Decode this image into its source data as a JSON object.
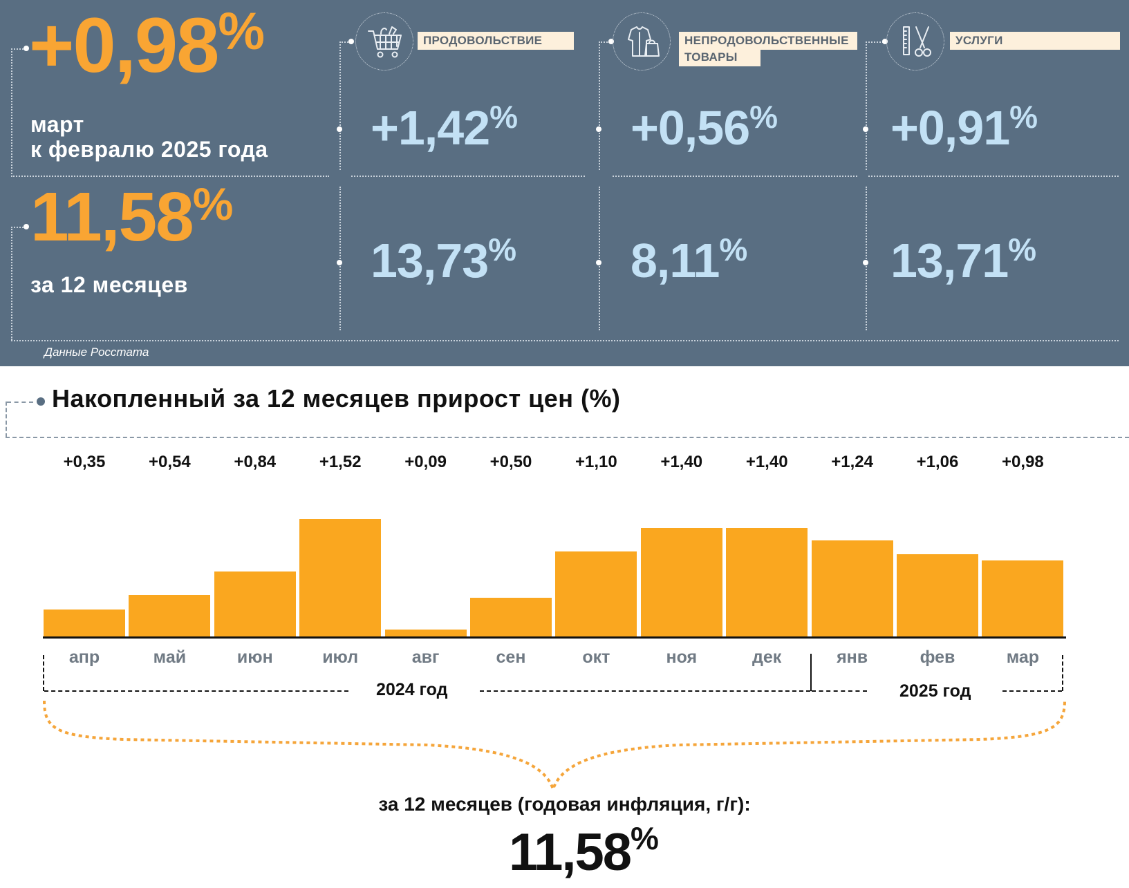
{
  "summary": {
    "monthly_value": "+0,98",
    "monthly_caption_1": "март",
    "monthly_caption_2": "к февралю 2025 года",
    "annual_value": "11,58",
    "annual_caption": "за 12 месяцев",
    "percent_sign": "%",
    "source": "Данные Росстата",
    "color_orange": "#f9a533",
    "color_panel": "#596e82"
  },
  "categories": [
    {
      "label": "ПРОДОВОЛЬСТВИЕ",
      "label_line2": "",
      "icon": "shopping-cart-icon",
      "monthly": "+1,42",
      "annual": "13,73"
    },
    {
      "label": "НЕПРОДОВОЛЬСТВЕННЫЕ",
      "label_line2": "ТОВАРЫ",
      "icon": "clothes-bag-icon",
      "monthly": "+0,56",
      "annual": "8,11"
    },
    {
      "label": "УСЛУГИ",
      "label_line2": "",
      "icon": "comb-scissors-icon",
      "monthly": "+0,91",
      "annual": "13,71"
    }
  ],
  "chart_data": {
    "type": "bar",
    "title": "Накопленный за 12 месяцев прирост цен (%)",
    "categories": [
      "апр",
      "май",
      "июн",
      "июл",
      "авг",
      "сен",
      "окт",
      "ноя",
      "дек",
      "янв",
      "фев",
      "мар"
    ],
    "values": [
      0.35,
      0.54,
      0.84,
      1.52,
      0.09,
      0.5,
      1.1,
      1.4,
      1.4,
      1.24,
      1.06,
      0.98
    ],
    "value_labels": [
      "+0,35",
      "+0,54",
      "+0,84",
      "+1,52",
      "+0,09",
      "+0,50",
      "+1,10",
      "+1,40",
      "+1,40",
      "+1,24",
      "+1,06",
      "+0,98"
    ],
    "year_groups": [
      {
        "label": "2024 год",
        "months": [
          "апр",
          "май",
          "июн",
          "июл",
          "авг",
          "сен",
          "окт",
          "ноя",
          "дек"
        ]
      },
      {
        "label": "2025 год",
        "months": [
          "янв",
          "фев",
          "мар"
        ]
      }
    ],
    "ylim": [
      0,
      1.6
    ],
    "bar_color": "#faa71f",
    "total_caption": "за 12 месяцев (годовая инфляция, г/г):",
    "total_value": "11,58",
    "total_percent": "%"
  }
}
